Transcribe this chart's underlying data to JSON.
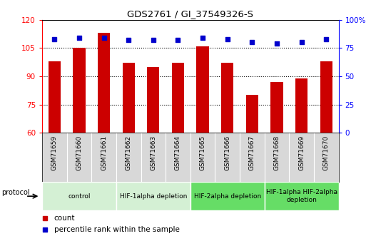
{
  "title": "GDS2761 / GI_37549326-S",
  "samples": [
    "GSM71659",
    "GSM71660",
    "GSM71661",
    "GSM71662",
    "GSM71663",
    "GSM71664",
    "GSM71665",
    "GSM71666",
    "GSM71667",
    "GSM71668",
    "GSM71669",
    "GSM71670"
  ],
  "counts": [
    98,
    105,
    113,
    97,
    95,
    97,
    106,
    97,
    80,
    87,
    89,
    98
  ],
  "percentile_ranks": [
    83,
    84,
    84,
    82,
    82,
    82,
    84,
    83,
    80,
    79,
    80,
    83
  ],
  "ylim_left": [
    60,
    120
  ],
  "ylim_right": [
    0,
    100
  ],
  "yticks_left": [
    60,
    75,
    90,
    105,
    120
  ],
  "yticks_right": [
    0,
    25,
    50,
    75,
    100
  ],
  "ytick_right_labels": [
    "0",
    "25",
    "50",
    "75",
    "100%"
  ],
  "bar_color": "#cc0000",
  "dot_color": "#0000cc",
  "protocol_groups": [
    {
      "label": "control",
      "start": 0,
      "end": 2,
      "color": "#d4f0d4"
    },
    {
      "label": "HIF-1alpha depletion",
      "start": 3,
      "end": 5,
      "color": "#d4f0d4"
    },
    {
      "label": "HIF-2alpha depletion",
      "start": 6,
      "end": 8,
      "color": "#66dd66"
    },
    {
      "label": "HIF-1alpha HIF-2alpha\ndepletion",
      "start": 9,
      "end": 11,
      "color": "#66dd66"
    }
  ],
  "legend_count_label": "count",
  "legend_pct_label": "percentile rank within the sample",
  "protocol_label": "protocol"
}
